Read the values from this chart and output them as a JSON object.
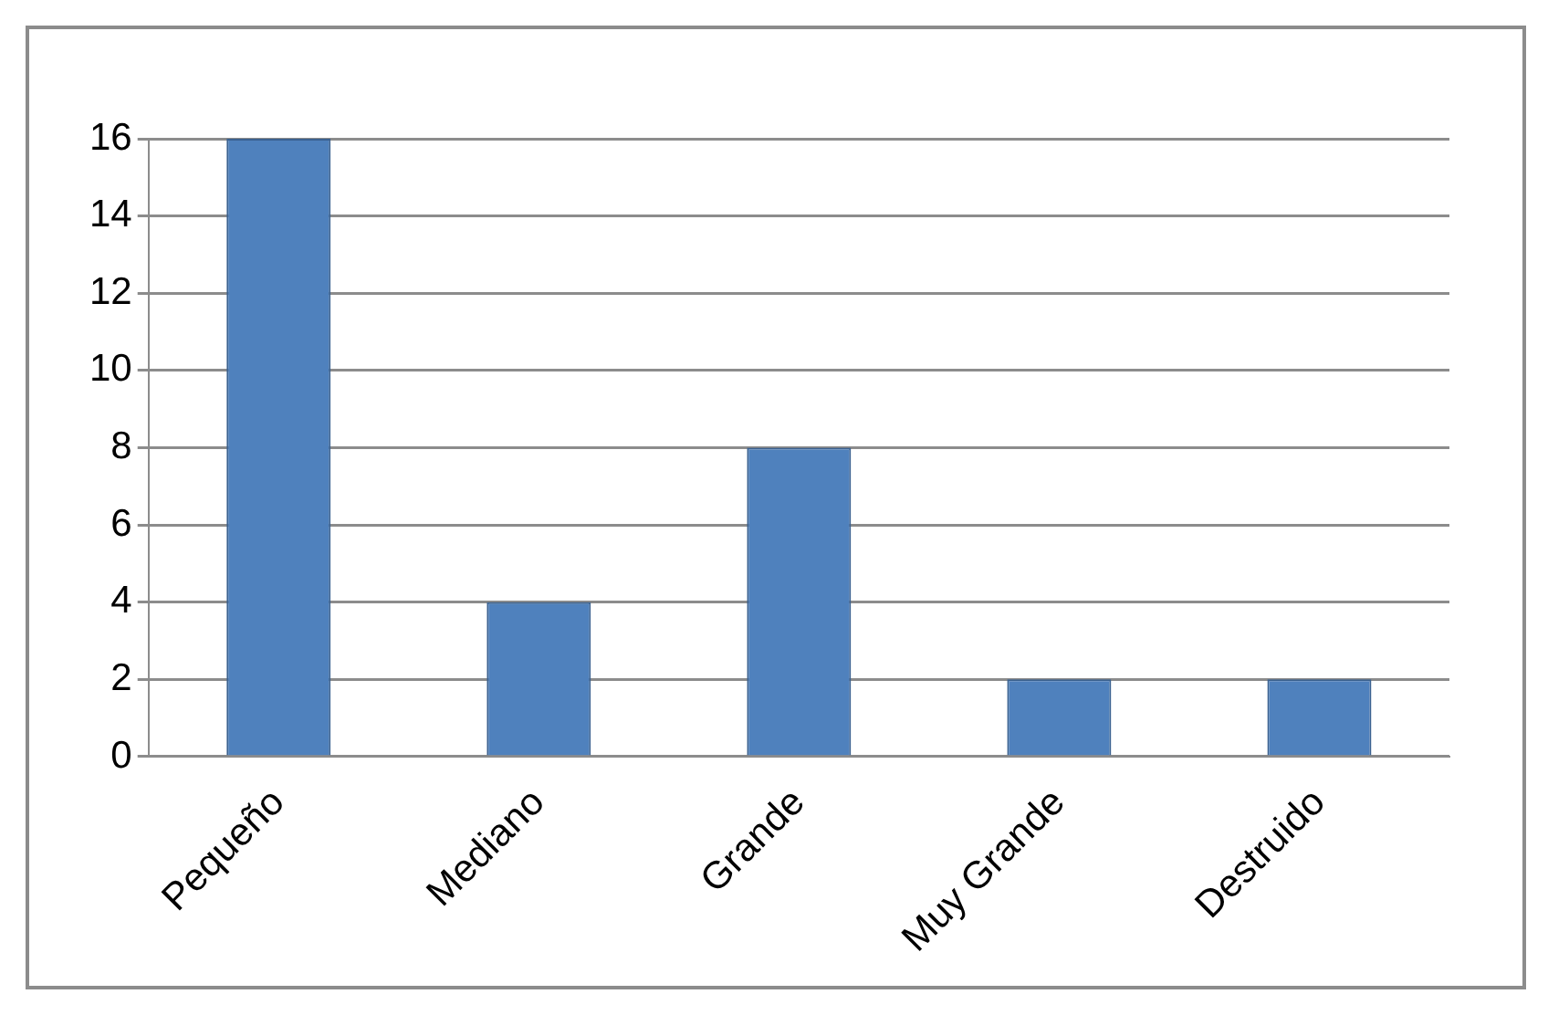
{
  "chart_data": {
    "type": "bar",
    "categories": [
      "Pequeño",
      "Mediano",
      "Grande",
      "Muy Grande",
      "Destruido"
    ],
    "values": [
      16,
      4,
      8,
      2,
      2
    ],
    "color": "#4f81bd",
    "ylim": [
      0,
      16
    ],
    "yticks": [
      0,
      2,
      4,
      6,
      8,
      10,
      12,
      14,
      16
    ],
    "grid": "y"
  }
}
